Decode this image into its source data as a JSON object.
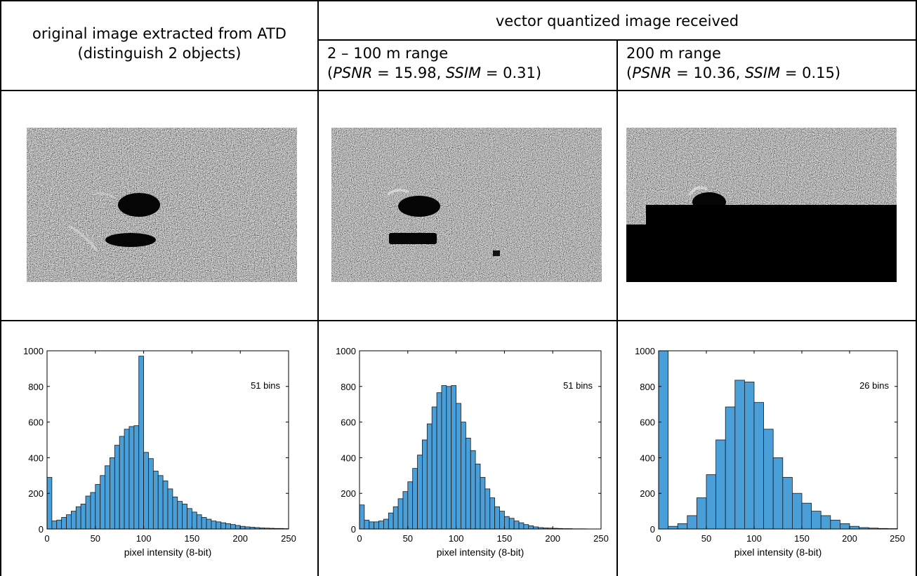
{
  "table": {
    "col1_header_line1": "original image extracted from ATD",
    "col1_header_line2": "(distinguish 2 objects)",
    "group_header": "vector quantized image received",
    "col2_header_range": "2 – 100 m range",
    "col2_psnr_label": "PSNR",
    "col2_psnr_value": " = 15.98, ",
    "col2_ssim_label": "SSIM",
    "col2_ssim_value": " = 0.31)",
    "col3_header_range": "200 m range",
    "col3_psnr_label": "PSNR",
    "col3_psnr_value": " = 10.36, ",
    "col3_ssim_label": "SSIM",
    "col3_ssim_value": " = 0.15)",
    "open_paren": "("
  },
  "images": [
    {
      "id": "original",
      "description_icon": "sonar-image"
    },
    {
      "id": "vq-2-100m",
      "description_icon": "sonar-image"
    },
    {
      "id": "vq-200m",
      "description_icon": "sonar-image"
    }
  ],
  "chart_data": [
    {
      "type": "bar",
      "annotation": "51 bins",
      "xlabel": "pixel intensity (8-bit)",
      "ylabel": "",
      "xlim": [
        0,
        250
      ],
      "ylim": [
        0,
        1000
      ],
      "xticks": [
        0,
        50,
        100,
        150,
        200,
        250
      ],
      "yticks": [
        0,
        200,
        400,
        600,
        800,
        1000
      ],
      "bin_width": 5,
      "bin_starts": [
        0,
        5,
        10,
        15,
        20,
        25,
        30,
        35,
        40,
        45,
        50,
        55,
        60,
        65,
        70,
        75,
        80,
        85,
        90,
        95,
        100,
        105,
        110,
        115,
        120,
        125,
        130,
        135,
        140,
        145,
        150,
        155,
        160,
        165,
        170,
        175,
        180,
        185,
        190,
        195,
        200,
        205,
        210,
        215,
        220,
        225,
        230,
        235,
        240,
        245
      ],
      "values": [
        290,
        45,
        50,
        65,
        80,
        100,
        125,
        140,
        185,
        205,
        250,
        300,
        355,
        400,
        470,
        520,
        560,
        575,
        580,
        970,
        430,
        395,
        325,
        300,
        270,
        225,
        180,
        155,
        140,
        115,
        95,
        80,
        65,
        55,
        45,
        40,
        35,
        30,
        25,
        20,
        15,
        12,
        10,
        8,
        6,
        5,
        4,
        3,
        3,
        2
      ]
    },
    {
      "type": "bar",
      "annotation": "51 bins",
      "xlabel": "pixel intensity (8-bit)",
      "ylabel": "",
      "xlim": [
        0,
        250
      ],
      "ylim": [
        0,
        1000
      ],
      "xticks": [
        0,
        50,
        100,
        150,
        200,
        250
      ],
      "yticks": [
        0,
        200,
        400,
        600,
        800,
        1000
      ],
      "bin_width": 5,
      "bin_starts": [
        0,
        5,
        10,
        15,
        20,
        25,
        30,
        35,
        40,
        45,
        50,
        55,
        60,
        65,
        70,
        75,
        80,
        85,
        90,
        95,
        100,
        105,
        110,
        115,
        120,
        125,
        130,
        135,
        140,
        145,
        150,
        155,
        160,
        165,
        170,
        175,
        180,
        185,
        190,
        195,
        200,
        205,
        210,
        215,
        220,
        225,
        230,
        235,
        240,
        245
      ],
      "values": [
        135,
        50,
        40,
        40,
        45,
        55,
        90,
        125,
        170,
        210,
        265,
        340,
        415,
        500,
        590,
        685,
        765,
        805,
        800,
        805,
        705,
        600,
        510,
        440,
        365,
        290,
        225,
        175,
        125,
        100,
        70,
        60,
        45,
        35,
        25,
        18,
        12,
        8,
        6,
        5,
        4,
        3,
        2,
        2,
        1,
        1,
        1,
        0,
        0,
        0
      ]
    },
    {
      "type": "bar",
      "annotation": "26 bins",
      "xlabel": "pixel intensity (8-bit)",
      "ylabel": "",
      "xlim": [
        0,
        250
      ],
      "ylim": [
        0,
        1000
      ],
      "xticks": [
        0,
        50,
        100,
        150,
        200,
        250
      ],
      "yticks": [
        0,
        200,
        400,
        600,
        800,
        1000
      ],
      "bin_width": 10,
      "bin_starts": [
        0,
        10,
        20,
        30,
        40,
        50,
        60,
        70,
        80,
        90,
        100,
        110,
        120,
        130,
        140,
        150,
        160,
        170,
        180,
        190,
        200,
        210,
        220,
        230,
        240
      ],
      "values": [
        1000,
        15,
        30,
        75,
        175,
        305,
        500,
        685,
        835,
        825,
        710,
        560,
        400,
        290,
        200,
        145,
        100,
        75,
        50,
        30,
        15,
        8,
        5,
        3,
        2
      ]
    }
  ]
}
